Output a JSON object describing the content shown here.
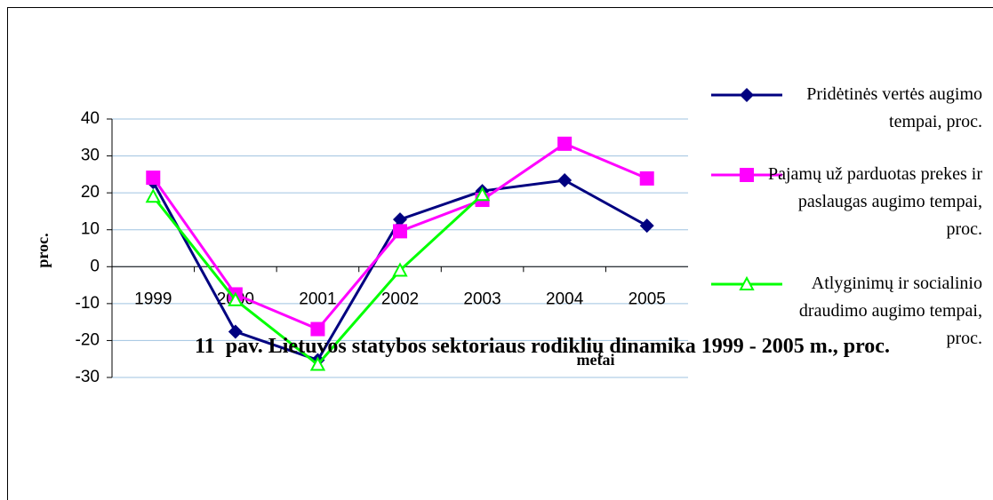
{
  "chart_data": {
    "type": "line",
    "title": "11  pav. Lietuvos statybos sektoriaus rodiklių dinamika 1999 - 2005 m., proc.",
    "ylabel": "proc.",
    "xlabel": "metai",
    "categories": [
      "1999",
      "2000",
      "2001",
      "2002",
      "2003",
      "2004",
      "2005"
    ],
    "series": [
      {
        "name": "Pridėtinės vertės augimo tempai, proc.",
        "color": "#000080",
        "marker": "diamond",
        "values": [
          22.9,
          -17.6,
          -25.3,
          12.8,
          20.5,
          23.4,
          11.1
        ]
      },
      {
        "name": "Pajamų už parduotas prekes ir paslaugas augimo tempai, proc.",
        "color": "#ff00ff",
        "marker": "square",
        "values": [
          24.1,
          -7.5,
          -16.9,
          9.6,
          18.1,
          33.3,
          23.9
        ]
      },
      {
        "name": "Atlyginimų ir socialinio draudimo augimo tempai, proc.",
        "color": "#00ff00",
        "marker": "triangle",
        "values": [
          19,
          -9,
          -26.5,
          -1,
          19.5,
          null,
          null
        ]
      }
    ],
    "ylim": [
      -30,
      40
    ],
    "yticks": [
      -30,
      -20,
      -10,
      0,
      10,
      20,
      30,
      40
    ],
    "grid": true
  }
}
